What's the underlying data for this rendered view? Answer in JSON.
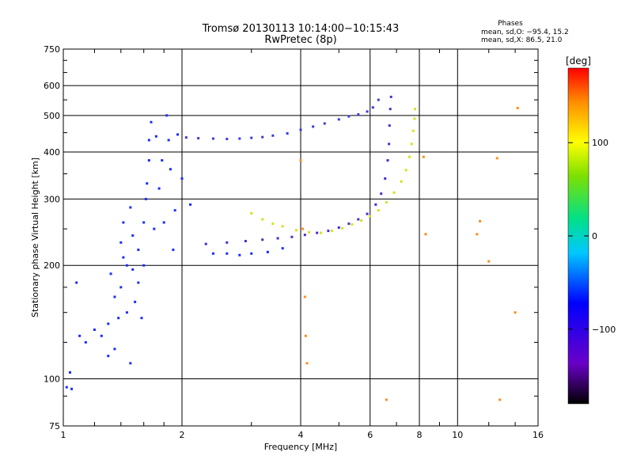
{
  "chart_data": {
    "type": "scatter",
    "title": "Tromsø 20130113 10:14:00−10:15:43",
    "subtitle": "RwPretec (8p)",
    "xlabel": "Frequency [MHz]",
    "ylabel": "Stationary phase Virtual Height [km]",
    "x_scale": "log",
    "y_scale": "log",
    "xlim": [
      1,
      16
    ],
    "ylim": [
      75,
      750
    ],
    "x_ticks": [
      1,
      2,
      4,
      6,
      8,
      10,
      16
    ],
    "x_ticks_labelled": [
      "1",
      "2",
      "4",
      "6",
      "8",
      "10",
      "16"
    ],
    "y_ticks": [
      75,
      100,
      200,
      300,
      400,
      500,
      600,
      750
    ],
    "y_ticks_labelled": [
      "75",
      "100",
      "200",
      "300",
      "400",
      "500",
      "600",
      "750"
    ],
    "grid": true,
    "stats": {
      "heading": "Phases",
      "line_o": "mean, sd,O: −95.4, 15.2",
      "line_x": "mean, sd,X:  86.5, 21.0"
    },
    "colorbar": {
      "label": "[deg]",
      "range": [
        -180,
        180
      ],
      "ticks": [
        100,
        0,
        -100
      ],
      "tick_labels": [
        "100",
        "0",
        "−100"
      ],
      "colormap": "rainbow (black–purple–blue–cyan–green–yellow–orange–red)"
    },
    "series": [
      {
        "points": [
          [
            1.02,
            95
          ],
          [
            1.05,
            94
          ],
          [
            1.04,
            104
          ],
          [
            1.08,
            180
          ],
          [
            1.1,
            130
          ],
          [
            1.14,
            125
          ],
          [
            1.2,
            135
          ],
          [
            1.25,
            130
          ],
          [
            1.3,
            140
          ],
          [
            1.3,
            115
          ],
          [
            1.32,
            190
          ],
          [
            1.35,
            165
          ],
          [
            1.35,
            120
          ],
          [
            1.38,
            145
          ],
          [
            1.4,
            175
          ],
          [
            1.4,
            230
          ],
          [
            1.42,
            210
          ],
          [
            1.42,
            260
          ],
          [
            1.45,
            200
          ],
          [
            1.45,
            150
          ],
          [
            1.48,
            110
          ],
          [
            1.48,
            285
          ],
          [
            1.5,
            195
          ],
          [
            1.5,
            240
          ],
          [
            1.52,
            160
          ],
          [
            1.55,
            220
          ],
          [
            1.55,
            180
          ],
          [
            1.58,
            145
          ],
          [
            1.6,
            260
          ],
          [
            1.6,
            200
          ],
          [
            1.62,
            300
          ],
          [
            1.63,
            330
          ],
          [
            1.65,
            380
          ],
          [
            1.65,
            430
          ],
          [
            1.67,
            480
          ],
          [
            1.7,
            250
          ],
          [
            1.72,
            440
          ],
          [
            1.75,
            320
          ],
          [
            1.78,
            380
          ],
          [
            1.8,
            260
          ],
          [
            1.83,
            500
          ],
          [
            1.85,
            430
          ],
          [
            1.87,
            360
          ],
          [
            1.9,
            220
          ],
          [
            1.92,
            280
          ],
          [
            1.95,
            445
          ],
          [
            2.0,
            340
          ],
          [
            2.1,
            290
          ],
          [
            2.4,
            215
          ],
          [
            2.6,
            215
          ],
          [
            2.8,
            213
          ],
          [
            3.0,
            215
          ],
          [
            3.3,
            217
          ],
          [
            3.6,
            222
          ]
        ]
      },
      {
        "points": [
          [
            2.05,
            437
          ],
          [
            2.2,
            435
          ],
          [
            2.4,
            434
          ],
          [
            2.6,
            433
          ],
          [
            2.8,
            434
          ],
          [
            3.0,
            436
          ],
          [
            3.2,
            438
          ],
          [
            3.4,
            442
          ],
          [
            3.7,
            448
          ],
          [
            4.0,
            458
          ],
          [
            4.3,
            467
          ],
          [
            4.6,
            476
          ],
          [
            5.0,
            488
          ],
          [
            5.3,
            497
          ],
          [
            5.6,
            503
          ],
          [
            5.9,
            512
          ],
          [
            6.1,
            525
          ],
          [
            6.3,
            550
          ]
        ]
      },
      {
        "points": [
          [
            2.3,
            228
          ],
          [
            2.6,
            230
          ],
          [
            2.9,
            232
          ],
          [
            3.2,
            234
          ],
          [
            3.5,
            236
          ],
          [
            3.8,
            238
          ],
          [
            4.1,
            241
          ],
          [
            4.4,
            244
          ],
          [
            4.7,
            247
          ],
          [
            5.0,
            252
          ],
          [
            5.3,
            258
          ],
          [
            5.6,
            265
          ],
          [
            5.9,
            274
          ],
          [
            6.2,
            290
          ],
          [
            6.4,
            310
          ],
          [
            6.55,
            340
          ],
          [
            6.65,
            380
          ],
          [
            6.7,
            420
          ],
          [
            6.72,
            470
          ],
          [
            6.75,
            520
          ],
          [
            6.78,
            560
          ]
        ]
      },
      {
        "points": [
          [
            3.0,
            275
          ],
          [
            3.2,
            265
          ],
          [
            3.4,
            258
          ],
          [
            3.6,
            254
          ],
          [
            3.9,
            248
          ],
          [
            4.2,
            245
          ],
          [
            4.5,
            244
          ],
          [
            4.8,
            247
          ],
          [
            5.1,
            251
          ],
          [
            5.4,
            257
          ],
          [
            5.7,
            263
          ],
          [
            6.0,
            270
          ],
          [
            6.3,
            280
          ],
          [
            6.6,
            294
          ],
          [
            6.9,
            312
          ],
          [
            7.2,
            334
          ],
          [
            7.4,
            358
          ],
          [
            7.55,
            388
          ],
          [
            7.65,
            420
          ],
          [
            7.72,
            455
          ],
          [
            7.78,
            490
          ],
          [
            7.8,
            520
          ]
        ]
      },
      {
        "points": [
          [
            4.0,
            380
          ],
          [
            4.05,
            250
          ],
          [
            4.1,
            165
          ],
          [
            4.12,
            130
          ],
          [
            4.15,
            110
          ],
          [
            6.6,
            88
          ],
          [
            8.2,
            388
          ],
          [
            8.3,
            242
          ],
          [
            11.2,
            242
          ],
          [
            11.4,
            262
          ],
          [
            12.0,
            205
          ],
          [
            12.6,
            385
          ],
          [
            12.8,
            88
          ],
          [
            14.0,
            150
          ],
          [
            14.2,
            523
          ]
        ]
      }
    ]
  }
}
